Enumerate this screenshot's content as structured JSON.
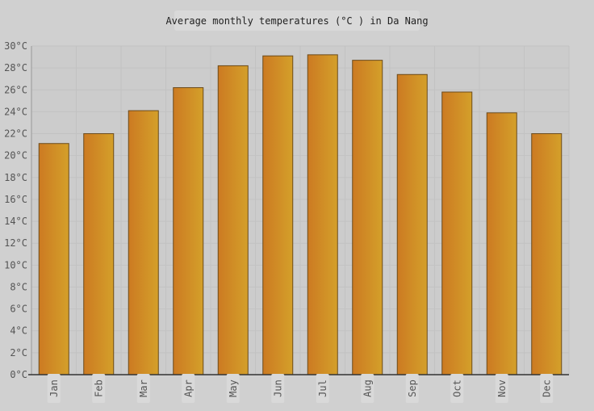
{
  "chart_data": {
    "type": "bar",
    "title": "Average monthly temperatures (°C ) in Da Nang",
    "xlabel": "",
    "ylabel": "",
    "categories": [
      "Jan",
      "Feb",
      "Mar",
      "Apr",
      "May",
      "Jun",
      "Jul",
      "Aug",
      "Sep",
      "Oct",
      "Nov",
      "Dec"
    ],
    "values": [
      21.1,
      22.0,
      24.1,
      26.2,
      28.2,
      29.1,
      29.2,
      28.7,
      27.4,
      25.8,
      23.9,
      22.0
    ],
    "ylim": [
      0,
      30
    ],
    "ytick_step": 2,
    "ytick_suffix": "°C",
    "grid": true,
    "legend": "none",
    "colors": {
      "background": "#d0d0d0",
      "plot_background": "#cccccc",
      "grid": "#c2c2c2",
      "bar_left": "#cc7a22",
      "bar_right": "#d4a02a",
      "bar_edge": "#6b4a1a",
      "axis": "#333333"
    }
  }
}
